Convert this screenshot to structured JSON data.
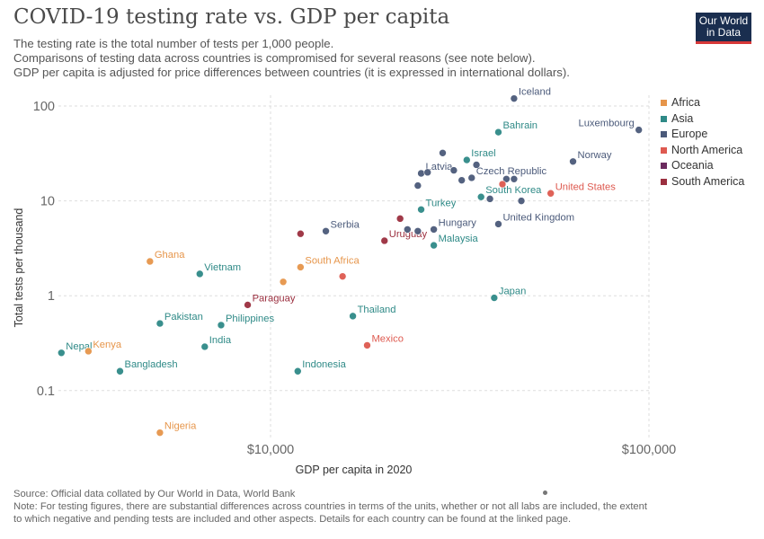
{
  "header": {
    "title": "COVID-19 testing rate vs. GDP per capita",
    "subtitle_lines": [
      "The testing rate is the total number of tests per 1,000 people.",
      "Comparisons of testing data across countries is compromised for several reasons (see note below).",
      "GDP per capita is adjusted for price differences between countries (it is expressed in international dollars)."
    ],
    "logo_line1": "Our World",
    "logo_line2": "in Data"
  },
  "footer": {
    "source": "Source: Official data collated by Our World in Data, World Bank",
    "note_lines": [
      "Note: For testing figures, there are substantial differences across countries in terms of the units, whether or not all labs are included, the extent",
      "to which negative and pending tests are included and other aspects. Details for each country can be found at the linked page."
    ]
  },
  "colors": {
    "Africa": "#e6954a",
    "Asia": "#2f8a87",
    "Europe": "#4b5a7a",
    "North America": "#de5a50",
    "Oceania": "#6b2a5e",
    "South America": "#9b2f3f"
  },
  "chart_data": {
    "type": "scatter",
    "xlabel": "GDP per capita in 2020",
    "ylabel": "Total tests per thousand",
    "xscale": "log",
    "yscale": "log",
    "xlim": [
      2750,
      100000
    ],
    "ylim": [
      0.03,
      130
    ],
    "x_ticks": [
      {
        "value": 10000,
        "label": "$10,000"
      },
      {
        "value": 100000,
        "label": "$100,000"
      }
    ],
    "y_ticks": [
      {
        "value": 0.1,
        "label": "0.1"
      },
      {
        "value": 1,
        "label": "1"
      },
      {
        "value": 10,
        "label": "10"
      },
      {
        "value": 100,
        "label": "100"
      }
    ],
    "grid": true,
    "legend": {
      "position": "right",
      "entries": [
        "Africa",
        "Asia",
        "Europe",
        "North America",
        "Oceania",
        "South America"
      ]
    },
    "points": [
      {
        "label": "Iceland",
        "region": "Europe",
        "x": 44000,
        "y": 120
      },
      {
        "label": "Luxembourg",
        "region": "Europe",
        "x": 94000,
        "y": 56
      },
      {
        "label": "Bahrain",
        "region": "Asia",
        "x": 40000,
        "y": 53
      },
      {
        "label": "Norway",
        "region": "Europe",
        "x": 63000,
        "y": 26
      },
      {
        "label": "Israel",
        "region": "Asia",
        "x": 33000,
        "y": 27
      },
      {
        "label": "Latvia",
        "region": "Europe",
        "x": 25000,
        "y": 19.5
      },
      {
        "label": "Czech Republic",
        "region": "Europe",
        "x": 34000,
        "y": 17.5
      },
      {
        "label": "South Korea",
        "region": "Asia",
        "x": 36000,
        "y": 11
      },
      {
        "label": "United States",
        "region": "North America",
        "x": 55000,
        "y": 12
      },
      {
        "label": "Turkey",
        "region": "Asia",
        "x": 25000,
        "y": 8.1
      },
      {
        "label": "United Kingdom",
        "region": "Europe",
        "x": 40000,
        "y": 5.7
      },
      {
        "label": "Serbia",
        "region": "Europe",
        "x": 14000,
        "y": 4.8
      },
      {
        "label": "Hungary",
        "region": "Europe",
        "x": 27000,
        "y": 5
      },
      {
        "label": "Uruguay",
        "region": "South America",
        "x": 20000,
        "y": 3.8
      },
      {
        "label": "Malaysia",
        "region": "Asia",
        "x": 27000,
        "y": 3.4
      },
      {
        "label": "Ghana",
        "region": "Africa",
        "x": 4800,
        "y": 2.3
      },
      {
        "label": "Vietnam",
        "region": "Asia",
        "x": 6500,
        "y": 1.7
      },
      {
        "label": "South Africa",
        "region": "Africa",
        "x": 12000,
        "y": 2
      },
      {
        "label": "Japan",
        "region": "Asia",
        "x": 39000,
        "y": 0.95
      },
      {
        "label": "Paraguay",
        "region": "South America",
        "x": 8700,
        "y": 0.8
      },
      {
        "label": "Thailand",
        "region": "Asia",
        "x": 16500,
        "y": 0.61
      },
      {
        "label": "Pakistan",
        "region": "Asia",
        "x": 5100,
        "y": 0.51
      },
      {
        "label": "Philippines",
        "region": "Asia",
        "x": 7400,
        "y": 0.49
      },
      {
        "label": "India",
        "region": "Asia",
        "x": 6700,
        "y": 0.29
      },
      {
        "label": "Mexico",
        "region": "North America",
        "x": 18000,
        "y": 0.3
      },
      {
        "label": "Nepal",
        "region": "Asia",
        "x": 2800,
        "y": 0.25
      },
      {
        "label": "Kenya",
        "region": "Africa",
        "x": 3300,
        "y": 0.26
      },
      {
        "label": "Bangladesh",
        "region": "Asia",
        "x": 4000,
        "y": 0.16
      },
      {
        "label": "Indonesia",
        "region": "Asia",
        "x": 11800,
        "y": 0.16
      },
      {
        "label": "Nigeria",
        "region": "Africa",
        "x": 5100,
        "y": 0.036
      },
      {
        "label": "",
        "region": "Europe",
        "x": 28500,
        "y": 32
      },
      {
        "label": "",
        "region": "Europe",
        "x": 30500,
        "y": 21
      },
      {
        "label": "",
        "region": "Europe",
        "x": 32000,
        "y": 16.5
      },
      {
        "label": "",
        "region": "Europe",
        "x": 26000,
        "y": 20
      },
      {
        "label": "",
        "region": "Europe",
        "x": 24500,
        "y": 14.5
      },
      {
        "label": "",
        "region": "Europe",
        "x": 35000,
        "y": 24
      },
      {
        "label": "",
        "region": "Europe",
        "x": 42000,
        "y": 17
      },
      {
        "label": "",
        "region": "Europe",
        "x": 44000,
        "y": 17
      },
      {
        "label": "",
        "region": "Europe",
        "x": 46000,
        "y": 10
      },
      {
        "label": "",
        "region": "Europe",
        "x": 38000,
        "y": 10.5
      },
      {
        "label": "",
        "region": "North America",
        "x": 41000,
        "y": 15
      },
      {
        "label": "",
        "region": "South America",
        "x": 22000,
        "y": 6.5
      },
      {
        "label": "",
        "region": "South America",
        "x": 12000,
        "y": 4.5
      },
      {
        "label": "",
        "region": "Europe",
        "x": 23000,
        "y": 5
      },
      {
        "label": "",
        "region": "Europe",
        "x": 24500,
        "y": 4.8
      },
      {
        "label": "",
        "region": "North America",
        "x": 15500,
        "y": 1.6
      },
      {
        "label": "",
        "region": "Africa",
        "x": 10800,
        "y": 1.4
      }
    ]
  }
}
